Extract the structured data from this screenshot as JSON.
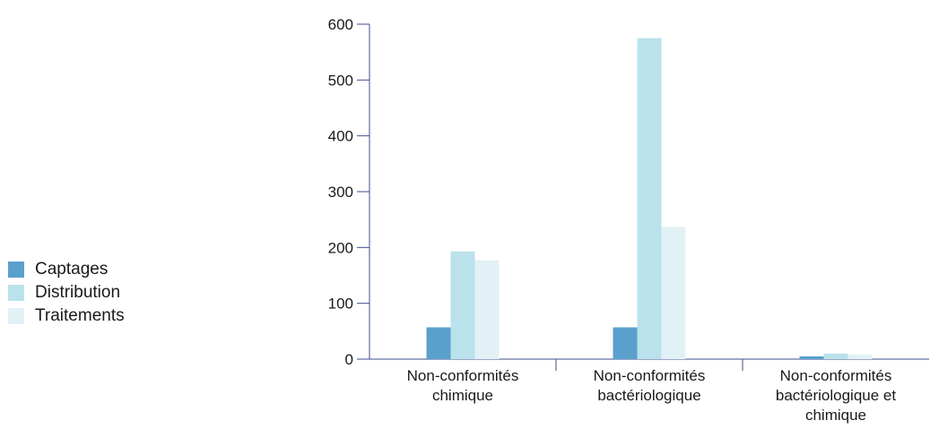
{
  "chart_data": {
    "type": "bar",
    "categories": [
      [
        "Non-conformités",
        "chimique"
      ],
      [
        "Non-conformités",
        "bactériologique"
      ],
      [
        "Non-conformités",
        "bactériologique et",
        "chimique"
      ]
    ],
    "series": [
      {
        "name": "Captages",
        "color": "#5aa0cd",
        "values": [
          57,
          57,
          5
        ]
      },
      {
        "name": "Distribution",
        "color": "#b9e2ec",
        "values": [
          193,
          575,
          10
        ]
      },
      {
        "name": "Traitements",
        "color": "#e2f1f6",
        "values": [
          177,
          237,
          8
        ]
      }
    ],
    "yticks": [
      0,
      100,
      200,
      300,
      400,
      500,
      600
    ],
    "ylim": [
      0,
      600
    ],
    "axis_color": "#3f4d8f",
    "grid": false,
    "legend_position": "left"
  }
}
